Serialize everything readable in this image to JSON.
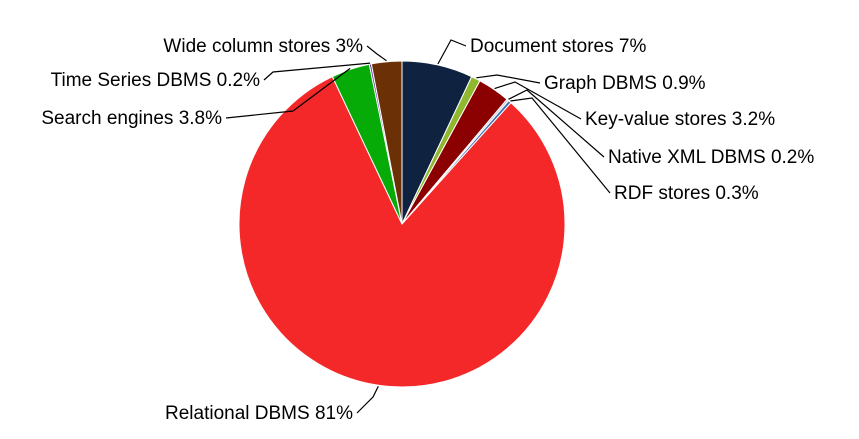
{
  "chart_data": {
    "type": "pie",
    "start_angle_deg": 0,
    "direction": "clockwise",
    "slices": [
      {
        "name": "Document stores",
        "value": 7,
        "label": "Document stores 7%",
        "color": "#0f2340"
      },
      {
        "name": "Graph DBMS",
        "value": 0.9,
        "label": "Graph DBMS 0.9%",
        "color": "#8fb82e"
      },
      {
        "name": "Key-value stores",
        "value": 3.2,
        "label": "Key-value stores 3.2%",
        "color": "#8b0000"
      },
      {
        "name": "Native XML DBMS",
        "value": 0.2,
        "label": "Native XML DBMS 0.2%",
        "color": "#c8c8c8"
      },
      {
        "name": "RDF stores",
        "value": 0.3,
        "label": "RDF stores 0.3%",
        "color": "#3f6fb8"
      },
      {
        "name": "Relational DBMS",
        "value": 81,
        "label": "Relational DBMS 81%",
        "color": "#f42828"
      },
      {
        "name": "Search engines",
        "value": 3.8,
        "label": "Search engines 3.8%",
        "color": "#07ab07"
      },
      {
        "name": "Time Series DBMS",
        "value": 0.2,
        "label": "Time Series DBMS 0.2%",
        "color": "#6a2fa8"
      },
      {
        "name": "Wide column stores",
        "value": 3,
        "label": "Wide column stores 3%",
        "color": "#6b3006"
      }
    ]
  }
}
